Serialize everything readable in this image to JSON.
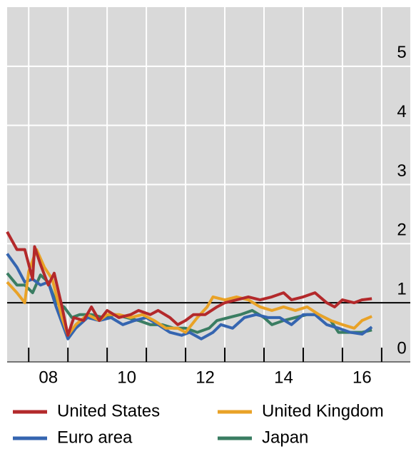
{
  "chart_data": {
    "type": "line",
    "xlim": [
      2007.45,
      2017.73
    ],
    "ylim": [
      0,
      6
    ],
    "yticks": [
      0,
      1,
      2,
      3,
      4,
      5
    ],
    "xticks": [
      {
        "value": 2008.5,
        "label": "08"
      },
      {
        "value": 2010.5,
        "label": "10"
      },
      {
        "value": 2012.5,
        "label": "12"
      },
      {
        "value": 2014.5,
        "label": "14"
      },
      {
        "value": 2016.5,
        "label": "16"
      }
    ],
    "x_gridlines": [
      2008,
      2009,
      2010,
      2011,
      2012,
      2013,
      2014,
      2015,
      2016,
      2017
    ],
    "reference_line": 1,
    "grid": true,
    "background": "#d9d9d9",
    "legend": "bottom",
    "series": [
      {
        "name": "United States",
        "color": "#b3292b",
        "x": [
          2007.45,
          2007.7,
          2007.9,
          2008.1,
          2008.15,
          2008.3,
          2008.5,
          2008.65,
          2008.85,
          2009.0,
          2009.15,
          2009.4,
          2009.6,
          2009.8,
          2010.0,
          2010.3,
          2010.6,
          2010.8,
          2011.1,
          2011.3,
          2011.6,
          2011.8,
          2012.0,
          2012.2,
          2012.5,
          2012.8,
          2013.0,
          2013.3,
          2013.6,
          2013.9,
          2014.2,
          2014.5,
          2014.7,
          2015.0,
          2015.3,
          2015.6,
          2015.8,
          2016.0,
          2016.3,
          2016.5,
          2016.75
        ],
        "values": [
          2.2,
          1.9,
          1.9,
          1.4,
          1.95,
          1.65,
          1.3,
          1.5,
          0.93,
          0.45,
          0.75,
          0.7,
          0.93,
          0.7,
          0.87,
          0.75,
          0.8,
          0.87,
          0.8,
          0.87,
          0.75,
          0.63,
          0.7,
          0.8,
          0.8,
          0.93,
          1.0,
          1.05,
          1.1,
          1.05,
          1.1,
          1.17,
          1.05,
          1.1,
          1.17,
          1.0,
          0.93,
          1.05,
          1.0,
          1.05,
          1.07
        ]
      },
      {
        "name": "United Kingdom",
        "color": "#e9a227",
        "x": [
          2007.45,
          2007.7,
          2007.9,
          2008.0,
          2008.2,
          2008.4,
          2008.6,
          2008.85,
          2009.0,
          2009.2,
          2009.5,
          2009.8,
          2010.0,
          2010.3,
          2010.6,
          2010.9,
          2011.2,
          2011.5,
          2011.8,
          2012.0,
          2012.3,
          2012.55,
          2012.7,
          2013.0,
          2013.3,
          2013.6,
          2013.9,
          2014.2,
          2014.5,
          2014.8,
          2015.1,
          2015.4,
          2015.7,
          2016.0,
          2016.3,
          2016.5,
          2016.75
        ],
        "values": [
          1.35,
          1.17,
          1.0,
          1.53,
          1.9,
          1.6,
          1.4,
          0.75,
          0.45,
          0.63,
          0.8,
          0.7,
          0.8,
          0.8,
          0.75,
          0.8,
          0.7,
          0.57,
          0.57,
          0.5,
          0.75,
          0.93,
          1.1,
          1.05,
          1.1,
          1.05,
          0.93,
          0.87,
          0.93,
          0.87,
          0.93,
          0.8,
          0.7,
          0.63,
          0.57,
          0.7,
          0.77
        ]
      },
      {
        "name": "Euro area",
        "color": "#3565b0",
        "x": [
          2007.45,
          2007.7,
          2007.9,
          2008.1,
          2008.3,
          2008.5,
          2008.7,
          2008.9,
          2009.0,
          2009.2,
          2009.5,
          2009.8,
          2010.1,
          2010.4,
          2010.7,
          2011.0,
          2011.3,
          2011.6,
          2011.9,
          2012.1,
          2012.4,
          2012.7,
          2012.9,
          2013.2,
          2013.5,
          2013.8,
          2014.1,
          2014.4,
          2014.7,
          2015.0,
          2015.3,
          2015.6,
          2015.9,
          2016.2,
          2016.5,
          2016.75
        ],
        "values": [
          1.83,
          1.6,
          1.35,
          1.4,
          1.3,
          1.35,
          0.93,
          0.57,
          0.39,
          0.57,
          0.75,
          0.7,
          0.75,
          0.63,
          0.7,
          0.75,
          0.63,
          0.5,
          0.45,
          0.5,
          0.39,
          0.5,
          0.63,
          0.57,
          0.75,
          0.8,
          0.75,
          0.75,
          0.63,
          0.8,
          0.8,
          0.63,
          0.57,
          0.5,
          0.47,
          0.59
        ]
      },
      {
        "name": "Japan",
        "color": "#3a7d62",
        "x": [
          2007.45,
          2007.7,
          2007.9,
          2008.1,
          2008.3,
          2008.5,
          2008.7,
          2008.9,
          2009.1,
          2009.3,
          2009.6,
          2009.9,
          2010.2,
          2010.5,
          2010.8,
          2011.1,
          2011.4,
          2011.7,
          2012.0,
          2012.3,
          2012.6,
          2012.8,
          2013.1,
          2013.4,
          2013.7,
          2014.0,
          2014.2,
          2014.5,
          2014.8,
          2015.1,
          2015.4,
          2015.7,
          2015.9,
          2016.2,
          2016.5,
          2016.75
        ],
        "values": [
          1.5,
          1.3,
          1.3,
          1.17,
          1.47,
          1.35,
          1.0,
          0.93,
          0.75,
          0.8,
          0.8,
          0.75,
          0.8,
          0.75,
          0.7,
          0.63,
          0.63,
          0.57,
          0.57,
          0.5,
          0.57,
          0.7,
          0.75,
          0.8,
          0.87,
          0.75,
          0.63,
          0.7,
          0.75,
          0.8,
          0.8,
          0.7,
          0.5,
          0.5,
          0.5,
          0.54
        ]
      }
    ]
  }
}
